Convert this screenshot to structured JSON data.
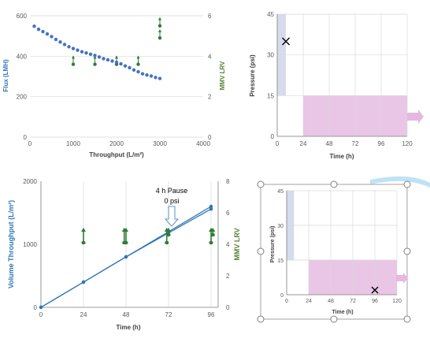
{
  "chart_data": [
    {
      "type": "scatter",
      "xlabel": "Throughput (L/m²)",
      "ylabel": "Flux (LMH)",
      "y2label": "MMV LRV",
      "xlim": [
        0,
        4000
      ],
      "ylim": [
        0,
        600
      ],
      "y2lim": [
        0,
        6
      ],
      "xticks": [
        "0",
        "1000",
        "2000",
        "3000",
        "4000"
      ],
      "yticks": [
        "0",
        "200",
        "400",
        "600"
      ],
      "y2ticks": [
        "0",
        "2",
        "4",
        "6"
      ],
      "flux": {
        "x": [
          100,
          200,
          300,
          400,
          500,
          600,
          700,
          800,
          900,
          1000,
          1100,
          1200,
          1300,
          1400,
          1500,
          1600,
          1700,
          1800,
          1900,
          2000,
          2100,
          2200,
          2300,
          2400,
          2500,
          2600,
          2700,
          2800,
          2900,
          3000
        ],
        "y": [
          548,
          533,
          522,
          510,
          497,
          483,
          470,
          458,
          447,
          438,
          430,
          422,
          416,
          410,
          404,
          396,
          388,
          382,
          376,
          370,
          362,
          352,
          343,
          332,
          323,
          313,
          307,
          302,
          295,
          290
        ]
      },
      "lrv": [
        {
          "x": 1000,
          "value": 3.6,
          "upper": 4.0
        },
        {
          "x": 1500,
          "value": 3.6,
          "upper": 4.0
        },
        {
          "x": 2000,
          "value": 3.6,
          "upper": 4.0
        },
        {
          "x": 2500,
          "value": 3.6,
          "upper": 4.0
        },
        {
          "x": 3000,
          "value": 4.9,
          "upper": 5.3
        },
        {
          "x": 3000,
          "value": 5.5,
          "upper": 5.9
        }
      ]
    },
    {
      "type": "area",
      "xlabel": "Time (h)",
      "ylabel": "Pressure (psi)",
      "xlim": [
        0,
        120
      ],
      "ylim": [
        0,
        45
      ],
      "xticks": [
        "0",
        "24",
        "48",
        "72",
        "96",
        "120"
      ],
      "yticks": [
        "0",
        "15",
        "30",
        "45"
      ],
      "pressure_blocks": [
        {
          "x0": 0,
          "x1": 8,
          "y0": 15,
          "y1": 45,
          "color": "#d6dcec"
        },
        {
          "x0": 24,
          "x1": 120,
          "y0": 0,
          "y1": 15,
          "color": "#e9c6e6"
        }
      ],
      "marker": {
        "x": 8,
        "y": 35
      }
    },
    {
      "type": "line",
      "xlabel": "Time (h)",
      "ylabel": "Volume Throughput (L/m²)",
      "y2label": "MMV LRV",
      "xlim": [
        0,
        100
      ],
      "ylim": [
        0,
        2000
      ],
      "y2lim": [
        0,
        8
      ],
      "xticks": [
        "0",
        "24",
        "48",
        "72",
        "96"
      ],
      "yticks": [
        "0",
        "1000",
        "2000"
      ],
      "y2ticks": [
        "0",
        "2",
        "4",
        "6",
        "8"
      ],
      "annotation": {
        "line1": "4 h Pause",
        "line2": "0 psi"
      },
      "series": [
        {
          "x": [
            0,
            24,
            48,
            72,
            96
          ],
          "y": [
            0,
            400,
            800,
            1200,
            1600
          ]
        },
        {
          "x": [
            0,
            24,
            48,
            72,
            96
          ],
          "y": [
            0,
            400,
            800,
            1180,
            1560
          ]
        }
      ],
      "lrv": [
        {
          "x": 24,
          "value": 4.1,
          "upper": 5.0
        },
        {
          "x": 47,
          "value": 4.1,
          "upper": 5.0
        },
        {
          "x": 48,
          "value": 4.1,
          "upper": 5.0
        },
        {
          "x": 71,
          "value": 4.1,
          "upper": 5.0
        },
        {
          "x": 72,
          "value": 4.6,
          "upper": 5.0
        },
        {
          "x": 96,
          "value": 4.1,
          "upper": 5.0
        },
        {
          "x": 97,
          "value": 4.6,
          "upper": 5.0
        }
      ]
    },
    {
      "type": "area",
      "xlabel": "Time (h)",
      "ylabel": "Pressure (psi)",
      "xlim": [
        0,
        120
      ],
      "ylim": [
        0,
        45
      ],
      "xticks": [
        "0",
        "24",
        "48",
        "72",
        "96",
        "120"
      ],
      "yticks": [
        "0",
        "15",
        "30",
        "45"
      ],
      "pressure_blocks": [
        {
          "x0": 0,
          "x1": 8,
          "y0": 15,
          "y1": 45,
          "color": "#d6dcec"
        },
        {
          "x0": 24,
          "x1": 120,
          "y0": 0,
          "y1": 15,
          "color": "#e9c6e6"
        }
      ],
      "marker": {
        "x": 96,
        "y": 2
      }
    }
  ],
  "colors": {
    "flux_point": "#4472c4",
    "lrv": "#2e7d32",
    "throughput_line": "#2e75b6",
    "pink_arrow": "#e5b8e0"
  }
}
